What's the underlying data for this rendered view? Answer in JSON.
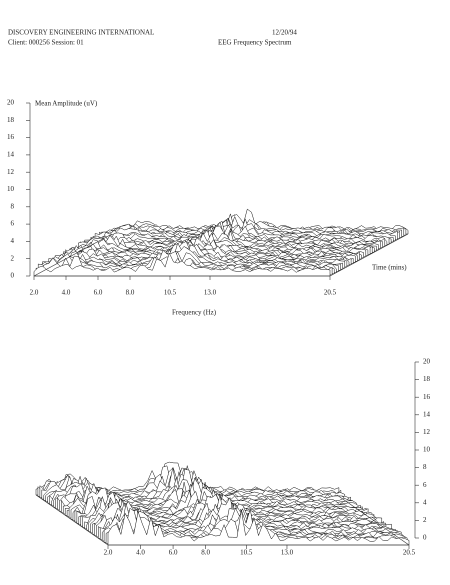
{
  "header": {
    "company": "DISCOVERY ENGINEERING INTERNATIONAL",
    "date": "12/20/94",
    "client": "Client: 000256   Session: 01",
    "report": "EEG Frequency Spectrum"
  },
  "chart_data": [
    {
      "type": "waterfall",
      "ylabel": "Mean Amplitude (uV)",
      "xlabel": "Frequency (Hz)",
      "zlabel": "Time (mins)",
      "xlim": [
        2,
        20.5
      ],
      "xticks": [
        {
          "value": 2,
          "label": "2.0"
        },
        {
          "value": 4,
          "label": "4.0"
        },
        {
          "value": 6,
          "label": "6.0"
        },
        {
          "value": 8,
          "label": "8.0"
        },
        10.5,
        {
          "value": 13,
          "label": "13.0"
        },
        20.5
      ],
      "ylim": [
        0,
        20
      ],
      "yticks": [
        0,
        2,
        4,
        6,
        8,
        10,
        12,
        14,
        16,
        18,
        20
      ],
      "axis_side": "left"
    },
    {
      "type": "waterfall",
      "xlim": [
        2,
        20.5
      ],
      "xticks": [
        {
          "value": 2,
          "label": "2.0"
        },
        {
          "value": 4,
          "label": "4.0"
        },
        {
          "value": 6,
          "label": "6.0"
        },
        {
          "value": 8,
          "label": "8.0"
        },
        10.5,
        {
          "value": 13,
          "label": "13.0"
        },
        20.5
      ],
      "ylim": [
        0,
        20
      ],
      "yticks": [
        0,
        2,
        4,
        6,
        8,
        10,
        12,
        14,
        16,
        18,
        20
      ],
      "axis_side": "right"
    }
  ]
}
